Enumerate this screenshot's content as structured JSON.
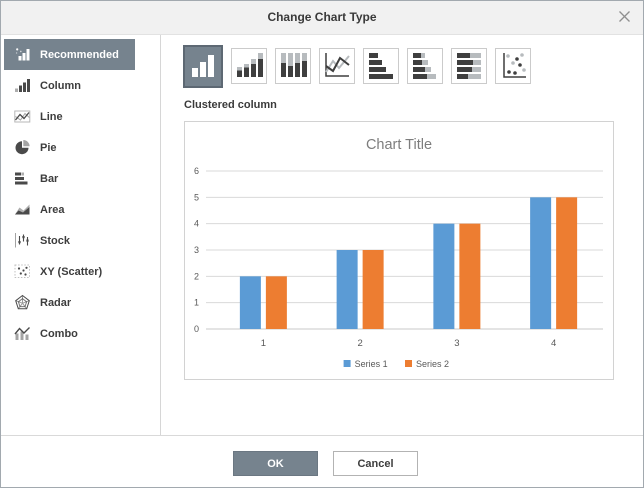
{
  "window": {
    "title": "Change Chart Type"
  },
  "titlebar": {
    "close_icon": "close-icon"
  },
  "sidebar": {
    "items": [
      {
        "label": "Recommended",
        "icon": "recommended-chart-icon",
        "selected": true
      },
      {
        "label": "Column",
        "icon": "column-chart-icon",
        "selected": false
      },
      {
        "label": "Line",
        "icon": "line-chart-icon",
        "selected": false
      },
      {
        "label": "Pie",
        "icon": "pie-chart-icon",
        "selected": false
      },
      {
        "label": "Bar",
        "icon": "bar-chart-icon",
        "selected": false
      },
      {
        "label": "Area",
        "icon": "area-chart-icon",
        "selected": false
      },
      {
        "label": "Stock",
        "icon": "stock-chart-icon",
        "selected": false
      },
      {
        "label": "XY (Scatter)",
        "icon": "scatter-chart-icon",
        "selected": false
      },
      {
        "label": "Radar",
        "icon": "radar-chart-icon",
        "selected": false
      },
      {
        "label": "Combo",
        "icon": "combo-chart-icon",
        "selected": false
      }
    ]
  },
  "subtype_bar": {
    "selected_subtype_label": "Clustered column",
    "icons": [
      {
        "name": "clustered-column-icon",
        "selected": true
      },
      {
        "name": "stacked-column-icon",
        "selected": false
      },
      {
        "name": "stacked-column-100-icon",
        "selected": false
      },
      {
        "name": "line-icon",
        "selected": false
      },
      {
        "name": "clustered-bar-icon",
        "selected": false
      },
      {
        "name": "stacked-bar-icon",
        "selected": false
      },
      {
        "name": "stacked-bar-100-icon",
        "selected": false
      },
      {
        "name": "scatter-icon",
        "selected": false
      }
    ]
  },
  "chart_data": {
    "type": "bar",
    "title": "Chart Title",
    "categories": [
      "1",
      "2",
      "3",
      "4"
    ],
    "series": [
      {
        "name": "Series 1",
        "color": "#5B9BD5",
        "values": [
          2,
          3,
          4,
          5
        ]
      },
      {
        "name": "Series 2",
        "color": "#ED7D31",
        "values": [
          2,
          3,
          4,
          5
        ]
      }
    ],
    "ylim": [
      0,
      6
    ],
    "yticks": [
      0,
      1,
      2,
      3,
      4,
      5,
      6
    ],
    "grid": true,
    "legend_position": "bottom"
  },
  "footer": {
    "ok": "OK",
    "cancel": "Cancel"
  },
  "colors": {
    "accent": "#76838E",
    "titlebar_bg": "#f1f1f1",
    "series1": "#5B9BD5",
    "series2": "#ED7D31",
    "gridline": "#d9d9d9",
    "axis_text": "#595959",
    "chart_title_text": "#7d7d7d"
  }
}
